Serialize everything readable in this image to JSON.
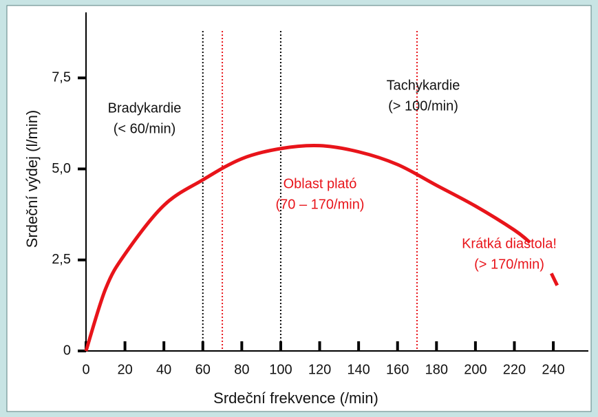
{
  "chart_data": {
    "type": "line",
    "xlabel": "Srdeční frekvence (/min)",
    "ylabel": "Srdeční výdej (l/min)",
    "x": [
      0,
      10,
      20,
      40,
      60,
      80,
      100,
      120,
      140,
      160,
      180,
      200,
      220,
      228,
      233,
      239,
      242
    ],
    "series": [
      {
        "color": "#e8141a",
        "values": [
          0,
          1.7,
          2.66,
          4.0,
          4.7,
          5.28,
          5.56,
          5.64,
          5.47,
          5.12,
          4.55,
          3.98,
          3.32,
          2.98,
          null,
          2.13,
          1.8
        ]
      }
    ],
    "xlim": [
      0,
      258
    ],
    "ylim": [
      0,
      9.3
    ],
    "xticks": [
      0,
      20,
      40,
      60,
      80,
      100,
      120,
      140,
      160,
      180,
      200,
      220,
      240
    ],
    "yticks": [
      0,
      {
        "value": 2.5,
        "label": "2,5"
      },
      {
        "value": 5,
        "label": "5,0"
      },
      {
        "value": 7.5,
        "label": "7,5"
      }
    ],
    "vlines": [
      {
        "x": 60,
        "color": "#000000"
      },
      {
        "x": 100,
        "color": "#000000"
      },
      {
        "x": 70,
        "color": "#e8141a"
      },
      {
        "x": 170,
        "color": "#e8141a"
      }
    ],
    "annotations": [
      {
        "lines": [
          "Bradykardie",
          "(< 60/min)"
        ],
        "color": "#111111"
      },
      {
        "lines": [
          "Tachykardie",
          "(> 100/min)"
        ],
        "color": "#111111"
      },
      {
        "lines": [
          "Oblast plató",
          "(70 – 170/min)"
        ],
        "color": "#e8141a"
      },
      {
        "lines": [
          "Krátká diastola!",
          "(> 170/min)"
        ],
        "color": "#e8141a"
      }
    ]
  }
}
